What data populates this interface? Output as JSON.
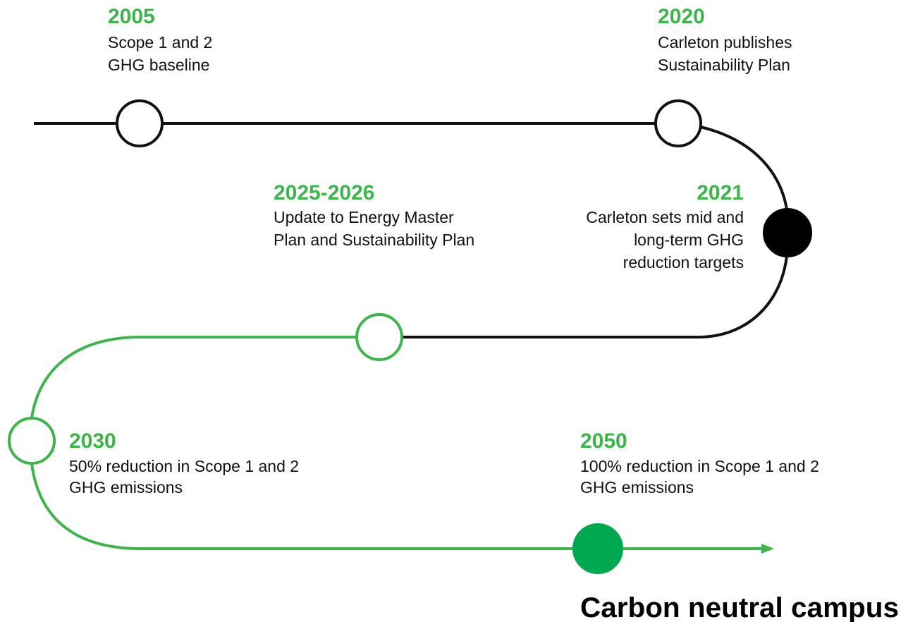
{
  "milestones": [
    {
      "year": "2005",
      "lines": [
        "Scope 1 and 2",
        "GHG baseline"
      ]
    },
    {
      "year": "2020",
      "lines": [
        "Carleton publishes",
        "Sustainability Plan"
      ]
    },
    {
      "year": "2025-2026",
      "lines": [
        "Update to Energy Master",
        "Plan and Sustainability Plan"
      ]
    },
    {
      "year": "2021",
      "lines": [
        "Carleton sets mid and",
        "long-term GHG",
        "reduction targets"
      ]
    },
    {
      "year": "2030",
      "lines": [
        "50% reduction in Scope 1 and 2",
        "GHG emissions"
      ]
    },
    {
      "year": "2050",
      "lines": [
        "100% reduction in Scope 1 and 2",
        "GHG emissions"
      ]
    }
  ],
  "final_label": "Carbon neutral campus"
}
